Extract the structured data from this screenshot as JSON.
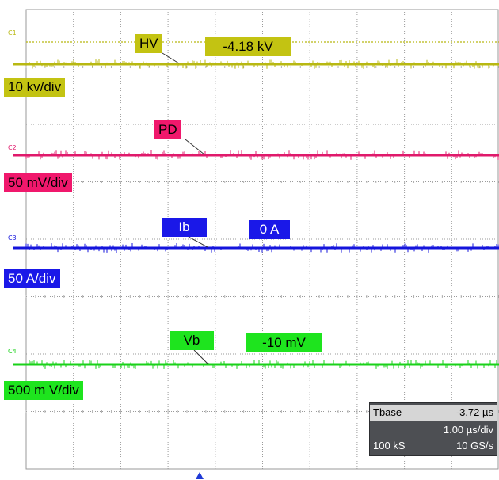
{
  "chart_data": {
    "type": "line",
    "grid": true,
    "x_divisions": 10,
    "y_divisions": 8,
    "series": [
      {
        "name": "HV",
        "channel_tag": "C1",
        "color": "#b8b812",
        "scale_label": "10 kv/div",
        "reading": "-4.18 kV",
        "line_style": "dotted reference + noisy trace"
      },
      {
        "name": "PD",
        "channel_tag": "C2",
        "color": "#e0196b",
        "scale_label": "50 mV/div",
        "reading": ""
      },
      {
        "name": "Ib",
        "channel_tag": "C3",
        "color": "#1414dc",
        "scale_label": "50 A/div",
        "reading": "0 A"
      },
      {
        "name": "Vb",
        "channel_tag": "C4",
        "color": "#19d219",
        "scale_label": "500 m V/div",
        "reading": "-10 mV"
      }
    ],
    "timebase": {
      "label": "Tbase",
      "offset": "-3.72 µs",
      "per_div": "1.00 µs/div",
      "samples": "100 kS",
      "rate": "10 GS/s"
    }
  },
  "label_colors": {
    "HV": "#c3c312",
    "PD": "#f0186c",
    "Ib": "#1a18e8",
    "Vb": "#1ee41e"
  }
}
